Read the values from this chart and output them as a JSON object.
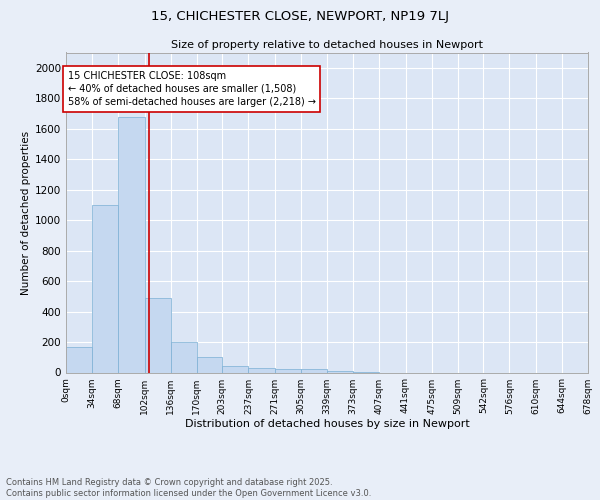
{
  "title": "15, CHICHESTER CLOSE, NEWPORT, NP19 7LJ",
  "subtitle": "Size of property relative to detached houses in Newport",
  "xlabel": "Distribution of detached houses by size in Newport",
  "ylabel": "Number of detached properties",
  "bar_color": "#c5d8f0",
  "bar_edge_color": "#7aafd4",
  "background_color": "#dce6f5",
  "grid_color": "#ffffff",
  "annotation_text": "15 CHICHESTER CLOSE: 108sqm\n← 40% of detached houses are smaller (1,508)\n58% of semi-detached houses are larger (2,218) →",
  "annotation_box_color": "#ffffff",
  "annotation_box_edge": "#cc0000",
  "vline_x": 108,
  "vline_color": "#cc0000",
  "bin_edges": [
    0,
    34,
    68,
    102,
    136,
    170,
    203,
    237,
    271,
    305,
    339,
    373,
    407,
    441,
    475,
    509,
    542,
    576,
    610,
    644,
    678
  ],
  "bar_heights": [
    170,
    1100,
    1680,
    490,
    200,
    105,
    45,
    30,
    22,
    22,
    10,
    5,
    0,
    0,
    0,
    0,
    0,
    0,
    0,
    0
  ],
  "ylim": [
    0,
    2100
  ],
  "yticks": [
    0,
    200,
    400,
    600,
    800,
    1000,
    1200,
    1400,
    1600,
    1800,
    2000
  ],
  "xtick_labels": [
    "0sqm",
    "34sqm",
    "68sqm",
    "102sqm",
    "136sqm",
    "170sqm",
    "203sqm",
    "237sqm",
    "271sqm",
    "305sqm",
    "339sqm",
    "373sqm",
    "407sqm",
    "441sqm",
    "475sqm",
    "509sqm",
    "542sqm",
    "576sqm",
    "610sqm",
    "644sqm",
    "678sqm"
  ],
  "footer_line1": "Contains HM Land Registry data © Crown copyright and database right 2025.",
  "footer_line2": "Contains public sector information licensed under the Open Government Licence v3.0.",
  "title_fontsize": 9.5,
  "subtitle_fontsize": 8.0,
  "xlabel_fontsize": 8.0,
  "ylabel_fontsize": 7.5,
  "ytick_fontsize": 7.5,
  "xtick_fontsize": 6.5,
  "annot_fontsize": 7.0,
  "footer_fontsize": 6.0
}
